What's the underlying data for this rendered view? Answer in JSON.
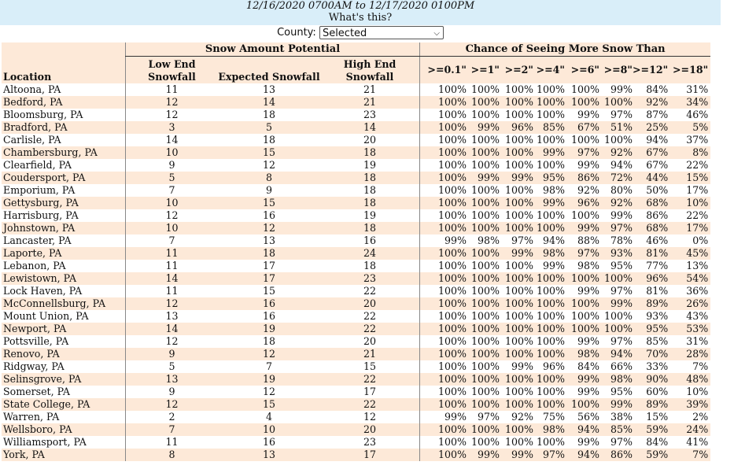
{
  "header": {
    "date_range": "12/16/2020 0700AM to 12/17/2020 0100PM",
    "whats_this": "What's this?"
  },
  "county": {
    "label": "County:",
    "selected": "Selected"
  },
  "table": {
    "group_snow_amount": "Snow Amount Potential",
    "group_chance": "Chance of Seeing More Snow Than",
    "col_location": "Location",
    "col_low": "Low End Snowfall",
    "col_expected": "Expected Snowfall",
    "col_high": "High End Snowfall",
    "thresholds": [
      ">=0.1\"",
      ">=1\"",
      ">=2\"",
      ">=4\"",
      ">=6\"",
      ">=8\"",
      ">=12\"",
      ">=18\""
    ],
    "rows": [
      {
        "loc": "Altoona, PA",
        "low": "11",
        "exp": "13",
        "high": "21",
        "p": [
          "100%",
          "100%",
          "100%",
          "100%",
          "100%",
          "99%",
          "84%",
          "31%"
        ]
      },
      {
        "loc": "Bedford, PA",
        "low": "12",
        "exp": "14",
        "high": "21",
        "p": [
          "100%",
          "100%",
          "100%",
          "100%",
          "100%",
          "100%",
          "92%",
          "34%"
        ]
      },
      {
        "loc": "Bloomsburg, PA",
        "low": "12",
        "exp": "18",
        "high": "23",
        "p": [
          "100%",
          "100%",
          "100%",
          "100%",
          "99%",
          "97%",
          "87%",
          "46%"
        ]
      },
      {
        "loc": "Bradford, PA",
        "low": "3",
        "exp": "5",
        "high": "14",
        "p": [
          "100%",
          "99%",
          "96%",
          "85%",
          "67%",
          "51%",
          "25%",
          "5%"
        ]
      },
      {
        "loc": "Carlisle, PA",
        "low": "14",
        "exp": "18",
        "high": "20",
        "p": [
          "100%",
          "100%",
          "100%",
          "100%",
          "100%",
          "100%",
          "94%",
          "37%"
        ]
      },
      {
        "loc": "Chambersburg, PA",
        "low": "10",
        "exp": "15",
        "high": "18",
        "p": [
          "100%",
          "100%",
          "100%",
          "99%",
          "97%",
          "92%",
          "67%",
          "8%"
        ]
      },
      {
        "loc": "Clearfield, PA",
        "low": "9",
        "exp": "12",
        "high": "19",
        "p": [
          "100%",
          "100%",
          "100%",
          "100%",
          "99%",
          "94%",
          "67%",
          "22%"
        ]
      },
      {
        "loc": "Coudersport, PA",
        "low": "5",
        "exp": "8",
        "high": "18",
        "p": [
          "100%",
          "99%",
          "99%",
          "95%",
          "86%",
          "72%",
          "44%",
          "15%"
        ]
      },
      {
        "loc": "Emporium, PA",
        "low": "7",
        "exp": "9",
        "high": "18",
        "p": [
          "100%",
          "100%",
          "100%",
          "98%",
          "92%",
          "80%",
          "50%",
          "17%"
        ]
      },
      {
        "loc": "Gettysburg, PA",
        "low": "10",
        "exp": "15",
        "high": "18",
        "p": [
          "100%",
          "100%",
          "100%",
          "99%",
          "96%",
          "92%",
          "68%",
          "10%"
        ]
      },
      {
        "loc": "Harrisburg, PA",
        "low": "12",
        "exp": "16",
        "high": "19",
        "p": [
          "100%",
          "100%",
          "100%",
          "100%",
          "100%",
          "99%",
          "86%",
          "22%"
        ]
      },
      {
        "loc": "Johnstown, PA",
        "low": "10",
        "exp": "12",
        "high": "18",
        "p": [
          "100%",
          "100%",
          "100%",
          "100%",
          "99%",
          "97%",
          "68%",
          "17%"
        ]
      },
      {
        "loc": "Lancaster, PA",
        "low": "7",
        "exp": "13",
        "high": "16",
        "p": [
          "99%",
          "98%",
          "97%",
          "94%",
          "88%",
          "78%",
          "46%",
          "0%"
        ]
      },
      {
        "loc": "Laporte, PA",
        "low": "11",
        "exp": "18",
        "high": "24",
        "p": [
          "100%",
          "100%",
          "99%",
          "98%",
          "97%",
          "93%",
          "81%",
          "45%"
        ]
      },
      {
        "loc": "Lebanon, PA",
        "low": "11",
        "exp": "17",
        "high": "18",
        "p": [
          "100%",
          "100%",
          "100%",
          "99%",
          "98%",
          "95%",
          "77%",
          "13%"
        ]
      },
      {
        "loc": "Lewistown, PA",
        "low": "14",
        "exp": "17",
        "high": "23",
        "p": [
          "100%",
          "100%",
          "100%",
          "100%",
          "100%",
          "100%",
          "96%",
          "54%"
        ]
      },
      {
        "loc": "Lock Haven, PA",
        "low": "11",
        "exp": "15",
        "high": "22",
        "p": [
          "100%",
          "100%",
          "100%",
          "100%",
          "99%",
          "97%",
          "81%",
          "36%"
        ]
      },
      {
        "loc": "McConnellsburg, PA",
        "low": "12",
        "exp": "16",
        "high": "20",
        "p": [
          "100%",
          "100%",
          "100%",
          "100%",
          "100%",
          "99%",
          "89%",
          "26%"
        ]
      },
      {
        "loc": "Mount Union, PA",
        "low": "13",
        "exp": "16",
        "high": "22",
        "p": [
          "100%",
          "100%",
          "100%",
          "100%",
          "100%",
          "100%",
          "93%",
          "43%"
        ]
      },
      {
        "loc": "Newport, PA",
        "low": "14",
        "exp": "19",
        "high": "22",
        "p": [
          "100%",
          "100%",
          "100%",
          "100%",
          "100%",
          "100%",
          "95%",
          "53%"
        ]
      },
      {
        "loc": "Pottsville, PA",
        "low": "12",
        "exp": "18",
        "high": "20",
        "p": [
          "100%",
          "100%",
          "100%",
          "100%",
          "99%",
          "97%",
          "85%",
          "31%"
        ]
      },
      {
        "loc": "Renovo, PA",
        "low": "9",
        "exp": "12",
        "high": "21",
        "p": [
          "100%",
          "100%",
          "100%",
          "100%",
          "98%",
          "94%",
          "70%",
          "28%"
        ]
      },
      {
        "loc": "Ridgway, PA",
        "low": "5",
        "exp": "7",
        "high": "15",
        "p": [
          "100%",
          "100%",
          "99%",
          "96%",
          "84%",
          "66%",
          "33%",
          "7%"
        ]
      },
      {
        "loc": "Selinsgrove, PA",
        "low": "13",
        "exp": "19",
        "high": "22",
        "p": [
          "100%",
          "100%",
          "100%",
          "100%",
          "99%",
          "98%",
          "90%",
          "48%"
        ]
      },
      {
        "loc": "Somerset, PA",
        "low": "9",
        "exp": "12",
        "high": "17",
        "p": [
          "100%",
          "100%",
          "100%",
          "100%",
          "99%",
          "95%",
          "60%",
          "10%"
        ]
      },
      {
        "loc": "State College, PA",
        "low": "12",
        "exp": "15",
        "high": "22",
        "p": [
          "100%",
          "100%",
          "100%",
          "100%",
          "100%",
          "99%",
          "89%",
          "39%"
        ]
      },
      {
        "loc": "Warren, PA",
        "low": "2",
        "exp": "4",
        "high": "12",
        "p": [
          "99%",
          "97%",
          "92%",
          "75%",
          "56%",
          "38%",
          "15%",
          "2%"
        ]
      },
      {
        "loc": "Wellsboro, PA",
        "low": "7",
        "exp": "10",
        "high": "20",
        "p": [
          "100%",
          "100%",
          "100%",
          "98%",
          "94%",
          "85%",
          "59%",
          "24%"
        ]
      },
      {
        "loc": "Williamsport, PA",
        "low": "11",
        "exp": "16",
        "high": "23",
        "p": [
          "100%",
          "100%",
          "100%",
          "100%",
          "99%",
          "97%",
          "84%",
          "41%"
        ]
      },
      {
        "loc": "York, PA",
        "low": "8",
        "exp": "13",
        "high": "17",
        "p": [
          "100%",
          "99%",
          "99%",
          "97%",
          "94%",
          "86%",
          "59%",
          "7%"
        ]
      }
    ]
  },
  "colors": {
    "banner": "#d9eef9",
    "band": "#fde9d8"
  }
}
